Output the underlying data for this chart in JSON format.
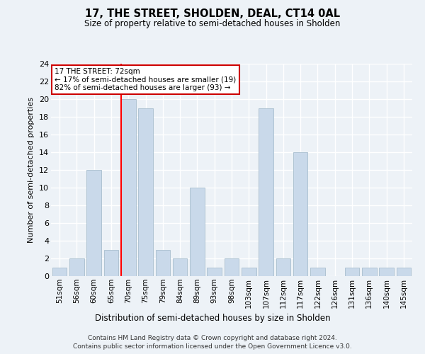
{
  "title": "17, THE STREET, SHOLDEN, DEAL, CT14 0AL",
  "subtitle": "Size of property relative to semi-detached houses in Sholden",
  "xlabel": "Distribution of semi-detached houses by size in Sholden",
  "ylabel": "Number of semi-detached properties",
  "categories": [
    "51sqm",
    "56sqm",
    "60sqm",
    "65sqm",
    "70sqm",
    "75sqm",
    "79sqm",
    "84sqm",
    "89sqm",
    "93sqm",
    "98sqm",
    "103sqm",
    "107sqm",
    "112sqm",
    "117sqm",
    "122sqm",
    "126sqm",
    "131sqm",
    "136sqm",
    "140sqm",
    "145sqm"
  ],
  "values": [
    1,
    2,
    12,
    3,
    20,
    19,
    3,
    2,
    10,
    1,
    2,
    1,
    19,
    2,
    14,
    1,
    0,
    1,
    1,
    1,
    1
  ],
  "bar_color": "#c9d9ea",
  "bar_edge_color": "#a8bece",
  "highlight_index": 4,
  "ylim": [
    0,
    24
  ],
  "yticks": [
    0,
    2,
    4,
    6,
    8,
    10,
    12,
    14,
    16,
    18,
    20,
    22,
    24
  ],
  "annotation_title": "17 THE STREET: 72sqm",
  "annotation_line1": "← 17% of semi-detached houses are smaller (19)",
  "annotation_line2": "82% of semi-detached houses are larger (93) →",
  "annotation_box_color": "#ffffff",
  "annotation_box_edge": "#cc0000",
  "footer_line1": "Contains HM Land Registry data © Crown copyright and database right 2024.",
  "footer_line2": "Contains public sector information licensed under the Open Government Licence v3.0.",
  "background_color": "#edf2f7",
  "grid_color": "#ffffff"
}
